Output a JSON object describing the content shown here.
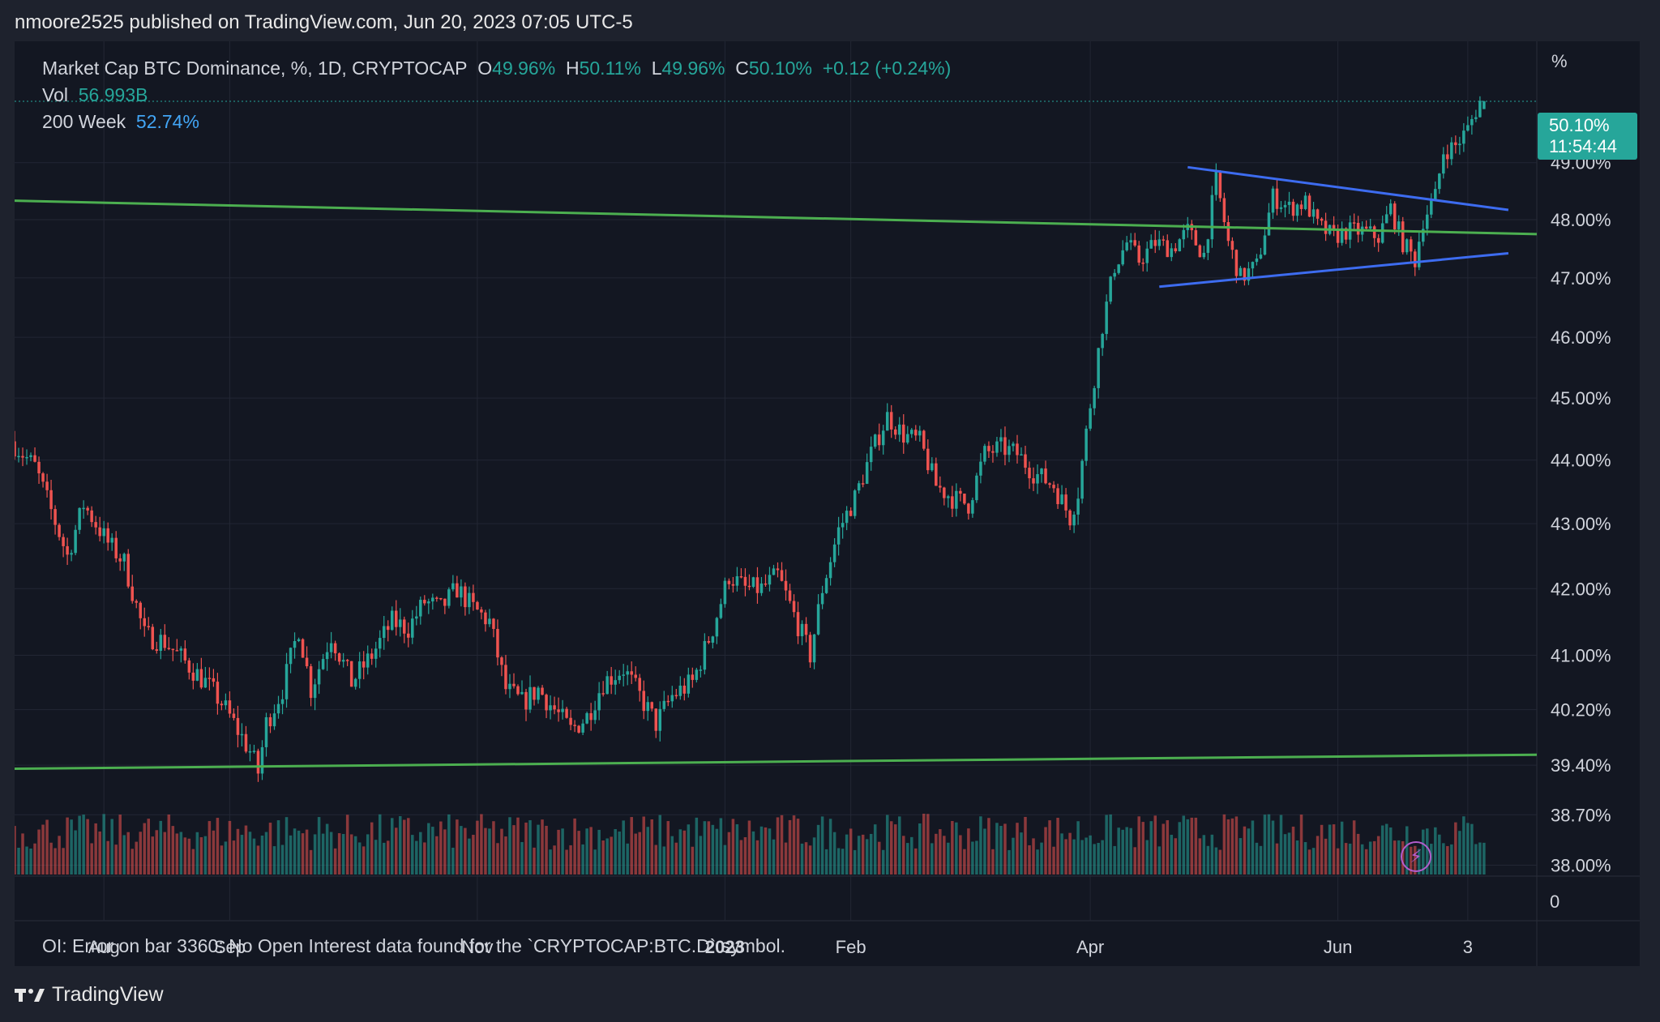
{
  "header": {
    "published": "nmoore2525 published on TradingView.com, Jun 20, 2023 07:05 UTC-5"
  },
  "legend": {
    "symbol": "Market Cap BTC Dominance, %, 1D, CRYPTOCAP",
    "o_label": "O",
    "o": "49.96%",
    "h_label": "H",
    "h": "50.11%",
    "l_label": "L",
    "l": "49.96%",
    "c_label": "C",
    "c": "50.10%",
    "change": "+0.12 (+0.24%)",
    "vol_label": "Vol",
    "vol": "56.993B",
    "ma_label": "200 Week",
    "ma": "52.74%"
  },
  "price_axis": {
    "unit": "%",
    "last_price": "50.10%",
    "countdown": "11:54:44",
    "bottom_label": "0"
  },
  "oi_error": "OI: Error on bar 3360: No Open Interest data found for the `CRYPTOCAP:BTC.D` symbol.",
  "footer": {
    "brand": "TradingView",
    "logo_icon": "tradingview-logo-icon"
  },
  "colors": {
    "bg": "#131722",
    "up": "#26a69a",
    "down": "#ef5350",
    "support_line": "#4caf50",
    "triangle": "#3d6cf0",
    "grid": "#232734"
  },
  "chart_data": {
    "type": "candlestick",
    "y_scale": "log",
    "y_ticks": [
      "38.00%",
      "38.70%",
      "39.40%",
      "40.20%",
      "41.00%",
      "42.00%",
      "43.00%",
      "44.00%",
      "45.00%",
      "46.00%",
      "47.00%",
      "48.00%",
      "49.00%"
    ],
    "y_tick_values": [
      38.0,
      38.7,
      39.4,
      40.2,
      41.0,
      42.0,
      43.0,
      44.0,
      45.0,
      46.0,
      47.0,
      48.0,
      49.0
    ],
    "x_ticks": [
      {
        "label": "Aug",
        "date": "2022-08-01"
      },
      {
        "label": "Sep",
        "date": "2022-09-01"
      },
      {
        "label": "Nov",
        "date": "2022-11-01"
      },
      {
        "label": "2023",
        "date": "2023-01-01",
        "bold": true
      },
      {
        "label": "Feb",
        "date": "2023-02-01"
      },
      {
        "label": "Apr",
        "date": "2023-04-01"
      },
      {
        "label": "Jun",
        "date": "2023-06-01"
      },
      {
        "label": "3",
        "date": "2023-07-03"
      }
    ],
    "x_range": [
      "2022-07-10",
      "2023-07-20"
    ],
    "y_range": [
      37.85,
      51.2
    ],
    "close_path": [
      [
        "2022-07-10",
        44.3
      ],
      [
        "2022-07-16",
        43.9
      ],
      [
        "2022-07-20",
        43.2
      ],
      [
        "2022-07-24",
        42.5
      ],
      [
        "2022-07-28",
        43.3
      ],
      [
        "2022-08-03",
        42.7
      ],
      [
        "2022-08-07",
        42.4
      ],
      [
        "2022-08-12",
        41.3
      ],
      [
        "2022-08-17",
        41.2
      ],
      [
        "2022-08-22",
        40.9
      ],
      [
        "2022-08-27",
        40.6
      ],
      [
        "2022-08-31",
        40.3
      ],
      [
        "2022-09-04",
        39.9
      ],
      [
        "2022-09-07",
        39.6
      ],
      [
        "2022-09-09",
        39.3
      ],
      [
        "2022-09-11",
        40.0
      ],
      [
        "2022-09-15",
        40.5
      ],
      [
        "2022-09-19",
        41.4
      ],
      [
        "2022-09-22",
        40.5
      ],
      [
        "2022-09-27",
        41.3
      ],
      [
        "2022-10-02",
        40.6
      ],
      [
        "2022-10-07",
        41.0
      ],
      [
        "2022-10-12",
        41.5
      ],
      [
        "2022-10-16",
        41.4
      ],
      [
        "2022-10-20",
        41.8
      ],
      [
        "2022-10-24",
        41.7
      ],
      [
        "2022-10-28",
        42.0
      ],
      [
        "2022-11-01",
        41.7
      ],
      [
        "2022-11-05",
        41.5
      ],
      [
        "2022-11-09",
        40.5
      ],
      [
        "2022-11-13",
        40.3
      ],
      [
        "2022-11-17",
        40.5
      ],
      [
        "2022-11-21",
        40.2
      ],
      [
        "2022-11-25",
        39.9
      ],
      [
        "2022-11-29",
        40.1
      ],
      [
        "2022-12-03",
        40.6
      ],
      [
        "2022-12-08",
        40.8
      ],
      [
        "2022-12-12",
        40.4
      ],
      [
        "2022-12-16",
        40.0
      ],
      [
        "2022-12-20",
        40.4
      ],
      [
        "2022-12-25",
        40.6
      ],
      [
        "2022-12-30",
        41.4
      ],
      [
        "2023-01-03",
        42.2
      ],
      [
        "2023-01-07",
        42.0
      ],
      [
        "2023-01-11",
        42.0
      ],
      [
        "2023-01-15",
        42.2
      ],
      [
        "2023-01-19",
        41.6
      ],
      [
        "2023-01-23",
        41.0
      ],
      [
        "2023-01-26",
        42.0
      ],
      [
        "2023-01-30",
        42.9
      ],
      [
        "2023-02-03",
        43.4
      ],
      [
        "2023-02-07",
        44.1
      ],
      [
        "2023-02-11",
        44.7
      ],
      [
        "2023-02-15",
        44.4
      ],
      [
        "2023-02-19",
        44.3
      ],
      [
        "2023-02-23",
        43.6
      ],
      [
        "2023-02-27",
        43.4
      ],
      [
        "2023-03-03",
        43.3
      ],
      [
        "2023-03-07",
        44.1
      ],
      [
        "2023-03-11",
        44.2
      ],
      [
        "2023-03-15",
        44.1
      ],
      [
        "2023-03-19",
        43.8
      ],
      [
        "2023-03-24",
        43.6
      ],
      [
        "2023-03-28",
        43.1
      ],
      [
        "2023-03-30",
        43.5
      ],
      [
        "2023-04-02",
        44.9
      ],
      [
        "2023-04-05",
        46.2
      ],
      [
        "2023-04-08",
        47.2
      ],
      [
        "2023-04-11",
        47.6
      ],
      [
        "2023-04-14",
        47.3
      ],
      [
        "2023-04-18",
        47.6
      ],
      [
        "2023-04-22",
        47.5
      ],
      [
        "2023-04-26",
        47.8
      ],
      [
        "2023-04-30",
        47.4
      ],
      [
        "2023-05-03",
        48.7
      ],
      [
        "2023-05-06",
        47.6
      ],
      [
        "2023-05-09",
        47.0
      ],
      [
        "2023-05-13",
        47.2
      ],
      [
        "2023-05-17",
        48.4
      ],
      [
        "2023-05-21",
        48.2
      ],
      [
        "2023-05-25",
        48.3
      ],
      [
        "2023-05-28",
        47.9
      ],
      [
        "2023-06-01",
        47.7
      ],
      [
        "2023-06-04",
        47.8
      ],
      [
        "2023-06-08",
        47.8
      ],
      [
        "2023-06-12",
        47.7
      ],
      [
        "2023-06-15",
        48.2
      ],
      [
        "2023-06-18",
        47.6
      ],
      [
        "2023-06-21",
        47.3
      ],
      [
        "2023-06-23",
        48.0
      ],
      [
        "2023-06-26",
        48.4
      ],
      [
        "2023-06-28",
        49.2
      ],
      [
        "2023-07-01",
        49.3
      ],
      [
        "2023-07-04",
        49.6
      ],
      [
        "2023-07-07",
        50.1
      ]
    ],
    "last_close": 50.1,
    "lines": [
      {
        "name": "upper-support",
        "color": "#4caf50",
        "from": [
          "2022-07-10",
          48.33
        ],
        "to": [
          "2023-07-20",
          47.75
        ]
      },
      {
        "name": "lower-support",
        "color": "#4caf50",
        "from": [
          "2022-07-10",
          39.35
        ],
        "to": [
          "2023-07-20",
          39.55
        ]
      },
      {
        "name": "triangle-top",
        "color": "#3d6cf0",
        "from": [
          "2023-04-25",
          48.92
        ],
        "to": [
          "2023-07-13",
          48.17
        ]
      },
      {
        "name": "triangle-bottom",
        "color": "#3d6cf0",
        "from": [
          "2023-04-18",
          46.85
        ],
        "to": [
          "2023-07-13",
          47.42
        ]
      }
    ]
  }
}
